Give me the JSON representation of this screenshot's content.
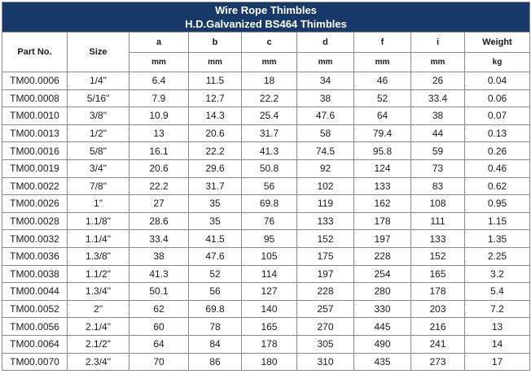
{
  "title": {
    "line1": "Wire Rope Thimbles",
    "line2": "H.D.Galvanized BS464 Thimbles"
  },
  "columns": {
    "part": "Part No.",
    "size": "Size",
    "a": "a",
    "b": "b",
    "c": "c",
    "d": "d",
    "f": "f",
    "i": "i",
    "weight": "Weight"
  },
  "units": {
    "a": "mm",
    "b": "mm",
    "c": "mm",
    "d": "mm",
    "f": "mm",
    "i": "mm",
    "weight": "kg"
  },
  "rows": [
    [
      "TM00.0006",
      "1/4\"",
      "6.4",
      "11.5",
      "18",
      "34",
      "46",
      "26",
      "0.04"
    ],
    [
      "TM00.0008",
      "5/16\"",
      "7.9",
      "12.7",
      "22.2",
      "38",
      "52",
      "33.4",
      "0.06"
    ],
    [
      "TM00.0010",
      "3/8\"",
      "10.9",
      "14.3",
      "25.4",
      "47.6",
      "64",
      "38",
      "0.07"
    ],
    [
      "TM00.0013",
      "1/2\"",
      "13",
      "20.6",
      "31.7",
      "58",
      "79.4",
      "44",
      "0.13"
    ],
    [
      "TM00.0016",
      "5/8\"",
      "16.1",
      "22.2",
      "41.3",
      "74.5",
      "95.8",
      "59",
      "0.26"
    ],
    [
      "TM00.0019",
      "3/4\"",
      "20.6",
      "29.6",
      "50.8",
      "92",
      "124",
      "73",
      "0.46"
    ],
    [
      "TM00.0022",
      "7/8\"",
      "22.2",
      "31.7",
      "56",
      "102",
      "133",
      "83",
      "0.62"
    ],
    [
      "TM00.0026",
      "1\"",
      "27",
      "35",
      "69.8",
      "119",
      "162",
      "108",
      "0.95"
    ],
    [
      "TM00.0028",
      "1.1/8\"",
      "28.6",
      "35",
      "76",
      "133",
      "178",
      "111",
      "1.15"
    ],
    [
      "TM00.0032",
      "1.1/4\"",
      "33.4",
      "41.5",
      "95",
      "152",
      "197",
      "133",
      "1.35"
    ],
    [
      "TM00.0036",
      "1.3/8\"",
      "38",
      "47.6",
      "105",
      "175",
      "228",
      "152",
      "2.25"
    ],
    [
      "TM00.0038",
      "1.1/2\"",
      "41.3",
      "52",
      "114",
      "197",
      "254",
      "165",
      "3.2"
    ],
    [
      "TM00.0044",
      "1.3/4\"",
      "50.1",
      "56",
      "127",
      "228",
      "280",
      "178",
      "5.4"
    ],
    [
      "TM00.0052",
      "2\"",
      "62",
      "69.8",
      "140",
      "257",
      "330",
      "203",
      "7.2"
    ],
    [
      "TM00.0056",
      "2.1/4\"",
      "60",
      "78",
      "165",
      "270",
      "445",
      "216",
      "13"
    ],
    [
      "TM00.0064",
      "2.1/2\"",
      "64",
      "84",
      "178",
      "305",
      "490",
      "241",
      "14"
    ],
    [
      "TM00.0070",
      "2.3/4\"",
      "70",
      "86",
      "180",
      "310",
      "435",
      "273",
      "17"
    ]
  ],
  "colors": {
    "title_bg": "#173a6b",
    "title_text": "#ffffff",
    "grid": "#8a8a8a"
  }
}
